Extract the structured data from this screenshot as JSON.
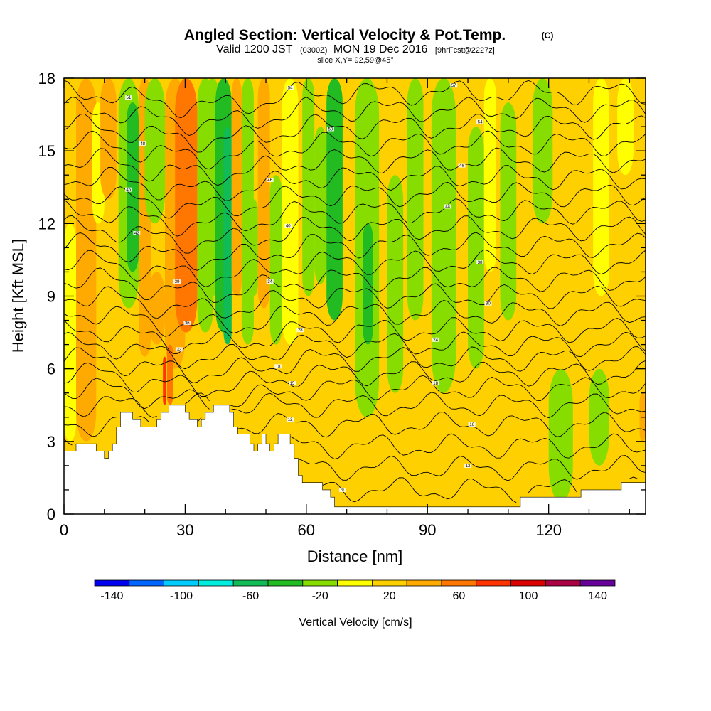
{
  "title": {
    "main": "Angled Section: Vertical Velocity & Pot.Temp.",
    "main_suffix": "(C)",
    "valid_prefix": "Valid 1200 JST",
    "valid_utc": "(0300Z)",
    "valid_date": "MON 19 Dec 2016",
    "forecast": "[9hrFcst@2227z]",
    "slice": "slice X,Y= 92,59@45°"
  },
  "chart_data": {
    "type": "heatmap",
    "xlabel": "Distance [nm]",
    "ylabel": "Height [Kft MSL]",
    "xlim": [
      0,
      144
    ],
    "ylim": [
      0,
      18
    ],
    "xticks": [
      0,
      30,
      60,
      90,
      120
    ],
    "yticks": [
      0,
      3,
      6,
      9,
      12,
      15,
      18
    ],
    "x_tick_labels": [
      "0",
      "30",
      "60",
      "90",
      "120"
    ],
    "y_tick_labels": [
      "0",
      "3",
      "6",
      "9",
      "12",
      "15",
      "18"
    ],
    "background_value": 10,
    "field": "Vertical Velocity [cm/s]",
    "bands": [
      {
        "x": 0,
        "w": 5,
        "ytop": 9.5,
        "ybot": 6.5,
        "v": -30
      },
      {
        "x": 0,
        "w": 3,
        "ytop": 12,
        "ybot": 3,
        "v": -5
      },
      {
        "x": 3,
        "w": 5,
        "ytop": 18,
        "ybot": 3,
        "v": 30
      },
      {
        "x": 7,
        "w": 3,
        "ytop": 17,
        "ybot": 12,
        "v": -5
      },
      {
        "x": 9,
        "w": 4,
        "ytop": 18,
        "ybot": 13,
        "v": 30
      },
      {
        "x": 13.5,
        "w": 5,
        "ytop": 18,
        "ybot": 8.5,
        "v": -15
      },
      {
        "x": 15.5,
        "w": 3,
        "ytop": 17,
        "ybot": 10,
        "v": -35
      },
      {
        "x": 16,
        "w": 1.5,
        "ytop": 13,
        "ybot": 11,
        "v": -45
      },
      {
        "x": 18.5,
        "w": 3,
        "ytop": 18,
        "ybot": 6.5,
        "v": 30
      },
      {
        "x": 20,
        "w": 5,
        "ytop": 18,
        "ybot": 12,
        "v": -15
      },
      {
        "x": 21,
        "w": 4,
        "ytop": 10,
        "ybot": 7,
        "v": 30
      },
      {
        "x": 25,
        "w": 5,
        "ytop": 18,
        "ybot": 6,
        "v": 30
      },
      {
        "x": 27.5,
        "w": 5.5,
        "ytop": 18,
        "ybot": 7.5,
        "v": 50
      },
      {
        "x": 25.5,
        "w": 1.5,
        "ytop": 7,
        "ybot": 4.5,
        "v": 55
      },
      {
        "x": 24.5,
        "w": 0.8,
        "ytop": 6.5,
        "ybot": 4.5,
        "v": 85
      },
      {
        "x": 33,
        "w": 4,
        "ytop": 18,
        "ybot": 7.5,
        "v": -15
      },
      {
        "x": 35,
        "w": 3.5,
        "ytop": 18,
        "ybot": 9,
        "v": -30
      },
      {
        "x": 37.5,
        "w": 4,
        "ytop": 18,
        "ybot": 7.5,
        "v": -40
      },
      {
        "x": 39.5,
        "w": 2,
        "ytop": 16,
        "ybot": 7,
        "v": -55
      },
      {
        "x": 40.2,
        "w": 1,
        "ytop": 13,
        "ybot": 8.5,
        "v": -70
      },
      {
        "x": 41.5,
        "w": 2.5,
        "ytop": 18,
        "ybot": 9,
        "v": 30
      },
      {
        "x": 44,
        "w": 3,
        "ytop": 18,
        "ybot": 7,
        "v": -15
      },
      {
        "x": 46,
        "w": 2,
        "ytop": 13,
        "ybot": 9,
        "v": -30
      },
      {
        "x": 48,
        "w": 3,
        "ytop": 18,
        "ybot": 8.5,
        "v": 30
      },
      {
        "x": 51,
        "w": 3,
        "ytop": 14,
        "ybot": 7,
        "v": -15
      },
      {
        "x": 54,
        "w": 4,
        "ytop": 18,
        "ybot": 7,
        "v": -5
      },
      {
        "x": 59,
        "w": 3,
        "ytop": 18,
        "ybot": 9,
        "v": -15
      },
      {
        "x": 62,
        "w": 3,
        "ytop": 16,
        "ybot": 9.5,
        "v": -15
      },
      {
        "x": 65,
        "w": 4,
        "ytop": 18,
        "ybot": 8,
        "v": -35
      },
      {
        "x": 72,
        "w": 6,
        "ytop": 18,
        "ybot": 4,
        "v": -15
      },
      {
        "x": 74,
        "w": 2.5,
        "ytop": 12,
        "ybot": 7,
        "v": -35
      },
      {
        "x": 80,
        "w": 4,
        "ytop": 14,
        "ybot": 5,
        "v": -15
      },
      {
        "x": 85,
        "w": 4,
        "ytop": 18,
        "ybot": 8,
        "v": -15
      },
      {
        "x": 91,
        "w": 6,
        "ytop": 18,
        "ybot": 5,
        "v": -15
      },
      {
        "x": 100,
        "w": 4,
        "ytop": 16,
        "ybot": 6,
        "v": -15
      },
      {
        "x": 104,
        "w": 3,
        "ytop": 18,
        "ybot": 10,
        "v": -5
      },
      {
        "x": 108,
        "w": 4,
        "ytop": 17,
        "ybot": 8,
        "v": -15
      },
      {
        "x": 116,
        "w": 5,
        "ytop": 18,
        "ybot": 12,
        "v": -15
      },
      {
        "x": 120,
        "w": 6,
        "ytop": 6,
        "ybot": 0.5,
        "v": -15
      },
      {
        "x": 130,
        "w": 5,
        "ytop": 6,
        "ybot": 2,
        "v": -15
      },
      {
        "x": 131,
        "w": 4,
        "ytop": 18,
        "ybot": 9,
        "v": -5
      },
      {
        "x": 137,
        "w": 4,
        "ytop": 18,
        "ybot": 14,
        "v": -5
      },
      {
        "x": 142.5,
        "w": 1.5,
        "ytop": 5,
        "ybot": 3,
        "v": 30
      }
    ],
    "terrain": [
      [
        0,
        2.6
      ],
      [
        3,
        2.6
      ],
      [
        3,
        2.9
      ],
      [
        8,
        2.9
      ],
      [
        8,
        2.6
      ],
      [
        10,
        2.6
      ],
      [
        10,
        2.3
      ],
      [
        11,
        2.3
      ],
      [
        11,
        2.6
      ],
      [
        12,
        2.6
      ],
      [
        12,
        2.9
      ],
      [
        13,
        2.9
      ],
      [
        13,
        3.6
      ],
      [
        14,
        3.6
      ],
      [
        14,
        4.2
      ],
      [
        17,
        4.2
      ],
      [
        17,
        3.9
      ],
      [
        19,
        3.9
      ],
      [
        19,
        3.6
      ],
      [
        23,
        3.6
      ],
      [
        23,
        3.9
      ],
      [
        24,
        3.9
      ],
      [
        24,
        4.2
      ],
      [
        26,
        4.2
      ],
      [
        26,
        4.5
      ],
      [
        30,
        4.5
      ],
      [
        30,
        4.2
      ],
      [
        31,
        4.2
      ],
      [
        31,
        3.9
      ],
      [
        33,
        3.9
      ],
      [
        33,
        3.6
      ],
      [
        34,
        3.6
      ],
      [
        34,
        3.9
      ],
      [
        35,
        3.9
      ],
      [
        35,
        4.2
      ],
      [
        37,
        4.2
      ],
      [
        37,
        4.5
      ],
      [
        41,
        4.5
      ],
      [
        41,
        4.2
      ],
      [
        42,
        4.2
      ],
      [
        42,
        3.6
      ],
      [
        43,
        3.6
      ],
      [
        43,
        3.3
      ],
      [
        46,
        3.3
      ],
      [
        46,
        2.9
      ],
      [
        47,
        2.9
      ],
      [
        47,
        2.6
      ],
      [
        48,
        2.6
      ],
      [
        48,
        2.9
      ],
      [
        49,
        2.9
      ],
      [
        49,
        3.3
      ],
      [
        50,
        3.3
      ],
      [
        50,
        2.9
      ],
      [
        51,
        2.9
      ],
      [
        51,
        2.6
      ],
      [
        52,
        2.6
      ],
      [
        52,
        2.9
      ],
      [
        53,
        2.9
      ],
      [
        53,
        3.3
      ],
      [
        56,
        3.3
      ],
      [
        56,
        2.9
      ],
      [
        57,
        2.9
      ],
      [
        57,
        2.3
      ],
      [
        58,
        2.3
      ],
      [
        58,
        1.6
      ],
      [
        59,
        1.6
      ],
      [
        59,
        1.3
      ],
      [
        64,
        1.3
      ],
      [
        64,
        1.0
      ],
      [
        66,
        1.0
      ],
      [
        66,
        0.7
      ],
      [
        67,
        0.7
      ],
      [
        67,
        0.3
      ],
      [
        113,
        0.3
      ],
      [
        113,
        0.7
      ],
      [
        128,
        0.7
      ],
      [
        128,
        1.0
      ],
      [
        138,
        1.0
      ],
      [
        138,
        1.3
      ],
      [
        144,
        1.3
      ]
    ],
    "contour_baselines": [
      1,
      1.9,
      2.8,
      3.7,
      4.5,
      5.2,
      5.8,
      6.4,
      7.0,
      7.6,
      8.3,
      9.0,
      9.7,
      10.4,
      11.1,
      11.8,
      12.5,
      13.2,
      13.9,
      14.6,
      15.3,
      16.0,
      16.7,
      17.4
    ],
    "contour_labels": [
      {
        "x": 16,
        "y": 17.2,
        "text": "51"
      },
      {
        "x": 19.5,
        "y": 15.3,
        "text": "48"
      },
      {
        "x": 16,
        "y": 13.4,
        "text": "45"
      },
      {
        "x": 18,
        "y": 11.6,
        "text": "42"
      },
      {
        "x": 28,
        "y": 9.6,
        "text": "39"
      },
      {
        "x": 30.5,
        "y": 7.9,
        "text": "36"
      },
      {
        "x": 28.5,
        "y": 6.8,
        "text": "33"
      },
      {
        "x": 56,
        "y": 17.6,
        "text": "54"
      },
      {
        "x": 66,
        "y": 15.9,
        "text": "50"
      },
      {
        "x": 51,
        "y": 13.8,
        "text": "46"
      },
      {
        "x": 55.5,
        "y": 11.9,
        "text": "40"
      },
      {
        "x": 51,
        "y": 9.6,
        "text": "34"
      },
      {
        "x": 58.5,
        "y": 7.6,
        "text": "28"
      },
      {
        "x": 53,
        "y": 6.1,
        "text": "18"
      },
      {
        "x": 56.5,
        "y": 5.4,
        "text": "15"
      },
      {
        "x": 56,
        "y": 3.9,
        "text": "12"
      },
      {
        "x": 69,
        "y": 1.0,
        "text": "9"
      },
      {
        "x": 96.5,
        "y": 17.7,
        "text": "57"
      },
      {
        "x": 103,
        "y": 16.2,
        "text": "54"
      },
      {
        "x": 98.5,
        "y": 14.4,
        "text": "48"
      },
      {
        "x": 95,
        "y": 12.7,
        "text": "44"
      },
      {
        "x": 103,
        "y": 10.4,
        "text": "38"
      },
      {
        "x": 105,
        "y": 8.7,
        "text": "30"
      },
      {
        "x": 92,
        "y": 7.2,
        "text": "24"
      },
      {
        "x": 92,
        "y": 5.4,
        "text": "18"
      },
      {
        "x": 101,
        "y": 3.7,
        "text": "16"
      },
      {
        "x": 100,
        "y": 2.0,
        "text": "12"
      }
    ],
    "colorbar": {
      "title": "Vertical Velocity [cm/s]",
      "bounds": [
        -150,
        150
      ],
      "colors": [
        "#0000ee",
        "#0066ff",
        "#00ccff",
        "#00eedd",
        "#11bb55",
        "#22bb22",
        "#88dd00",
        "#ffff00",
        "#ffd000",
        "#ffaa00",
        "#ff7700",
        "#ff3300",
        "#dd0000",
        "#aa0044",
        "#660099"
      ],
      "labels": [
        "-140",
        "-100",
        "-60",
        "-20",
        "20",
        "60",
        "100",
        "140"
      ],
      "label_values": [
        -140,
        -100,
        -60,
        -20,
        20,
        60,
        100,
        140
      ]
    }
  }
}
